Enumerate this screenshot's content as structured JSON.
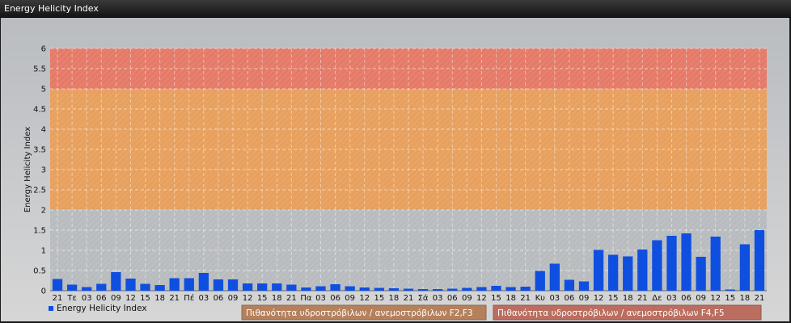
{
  "window": {
    "title": "Energy Helicity Index"
  },
  "chart_data": {
    "type": "bar",
    "ylabel": "Energy Helicity Index",
    "ylim": [
      0,
      6
    ],
    "yticks": [
      "0",
      "0.5",
      "1",
      "1.5",
      "2",
      "2.5",
      "3",
      "3.5",
      "4",
      "4.5",
      "5",
      "5.5",
      "6"
    ],
    "grid": true,
    "bands": [
      {
        "from": 2,
        "to": 5,
        "color": "#e7a05e"
      },
      {
        "from": 5,
        "to": 6,
        "color": "#e57a68"
      }
    ],
    "categories": [
      "21",
      "Τε",
      "03",
      "06",
      "09",
      "12",
      "15",
      "18",
      "21",
      "Πέ",
      "03",
      "06",
      "09",
      "12",
      "15",
      "18",
      "21",
      "Πα",
      "03",
      "06",
      "09",
      "12",
      "15",
      "18",
      "21",
      "Σά",
      "03",
      "06",
      "09",
      "12",
      "15",
      "18",
      "21",
      "Κυ",
      "03",
      "06",
      "09",
      "12",
      "15",
      "18",
      "21",
      "Δε",
      "03",
      "06",
      "09",
      "12",
      "15",
      "18",
      "21"
    ],
    "series": [
      {
        "name": "Energy Helicity Index",
        "color": "#0f4fe0",
        "values": [
          0.29,
          0.15,
          0.09,
          0.17,
          0.46,
          0.3,
          0.17,
          0.14,
          0.31,
          0.31,
          0.44,
          0.28,
          0.28,
          0.18,
          0.18,
          0.18,
          0.15,
          0.08,
          0.11,
          0.16,
          0.11,
          0.08,
          0.07,
          0.06,
          0.05,
          0.04,
          0.04,
          0.05,
          0.07,
          0.09,
          0.12,
          0.09,
          0.1,
          0.49,
          0.67,
          0.27,
          0.23,
          1.01,
          0.89,
          0.85,
          1.02,
          1.25,
          1.36,
          1.42,
          0.84,
          1.34,
          0.03,
          1.15,
          1.5
        ]
      }
    ],
    "legend": {
      "position": "bottom-left",
      "items": [
        {
          "label": "Energy Helicity Index",
          "color": "#0f4fe0"
        },
        {
          "label": "Πιθανότητα υδροστρόβιλων / ανεμοστρόβιλων F2,F3",
          "color": "#b5805c"
        },
        {
          "label": "Πιθανότητα υδροστρόβιλων / ανεμοστρόβιλων F4,F5",
          "color": "#bb6e60"
        }
      ]
    }
  }
}
